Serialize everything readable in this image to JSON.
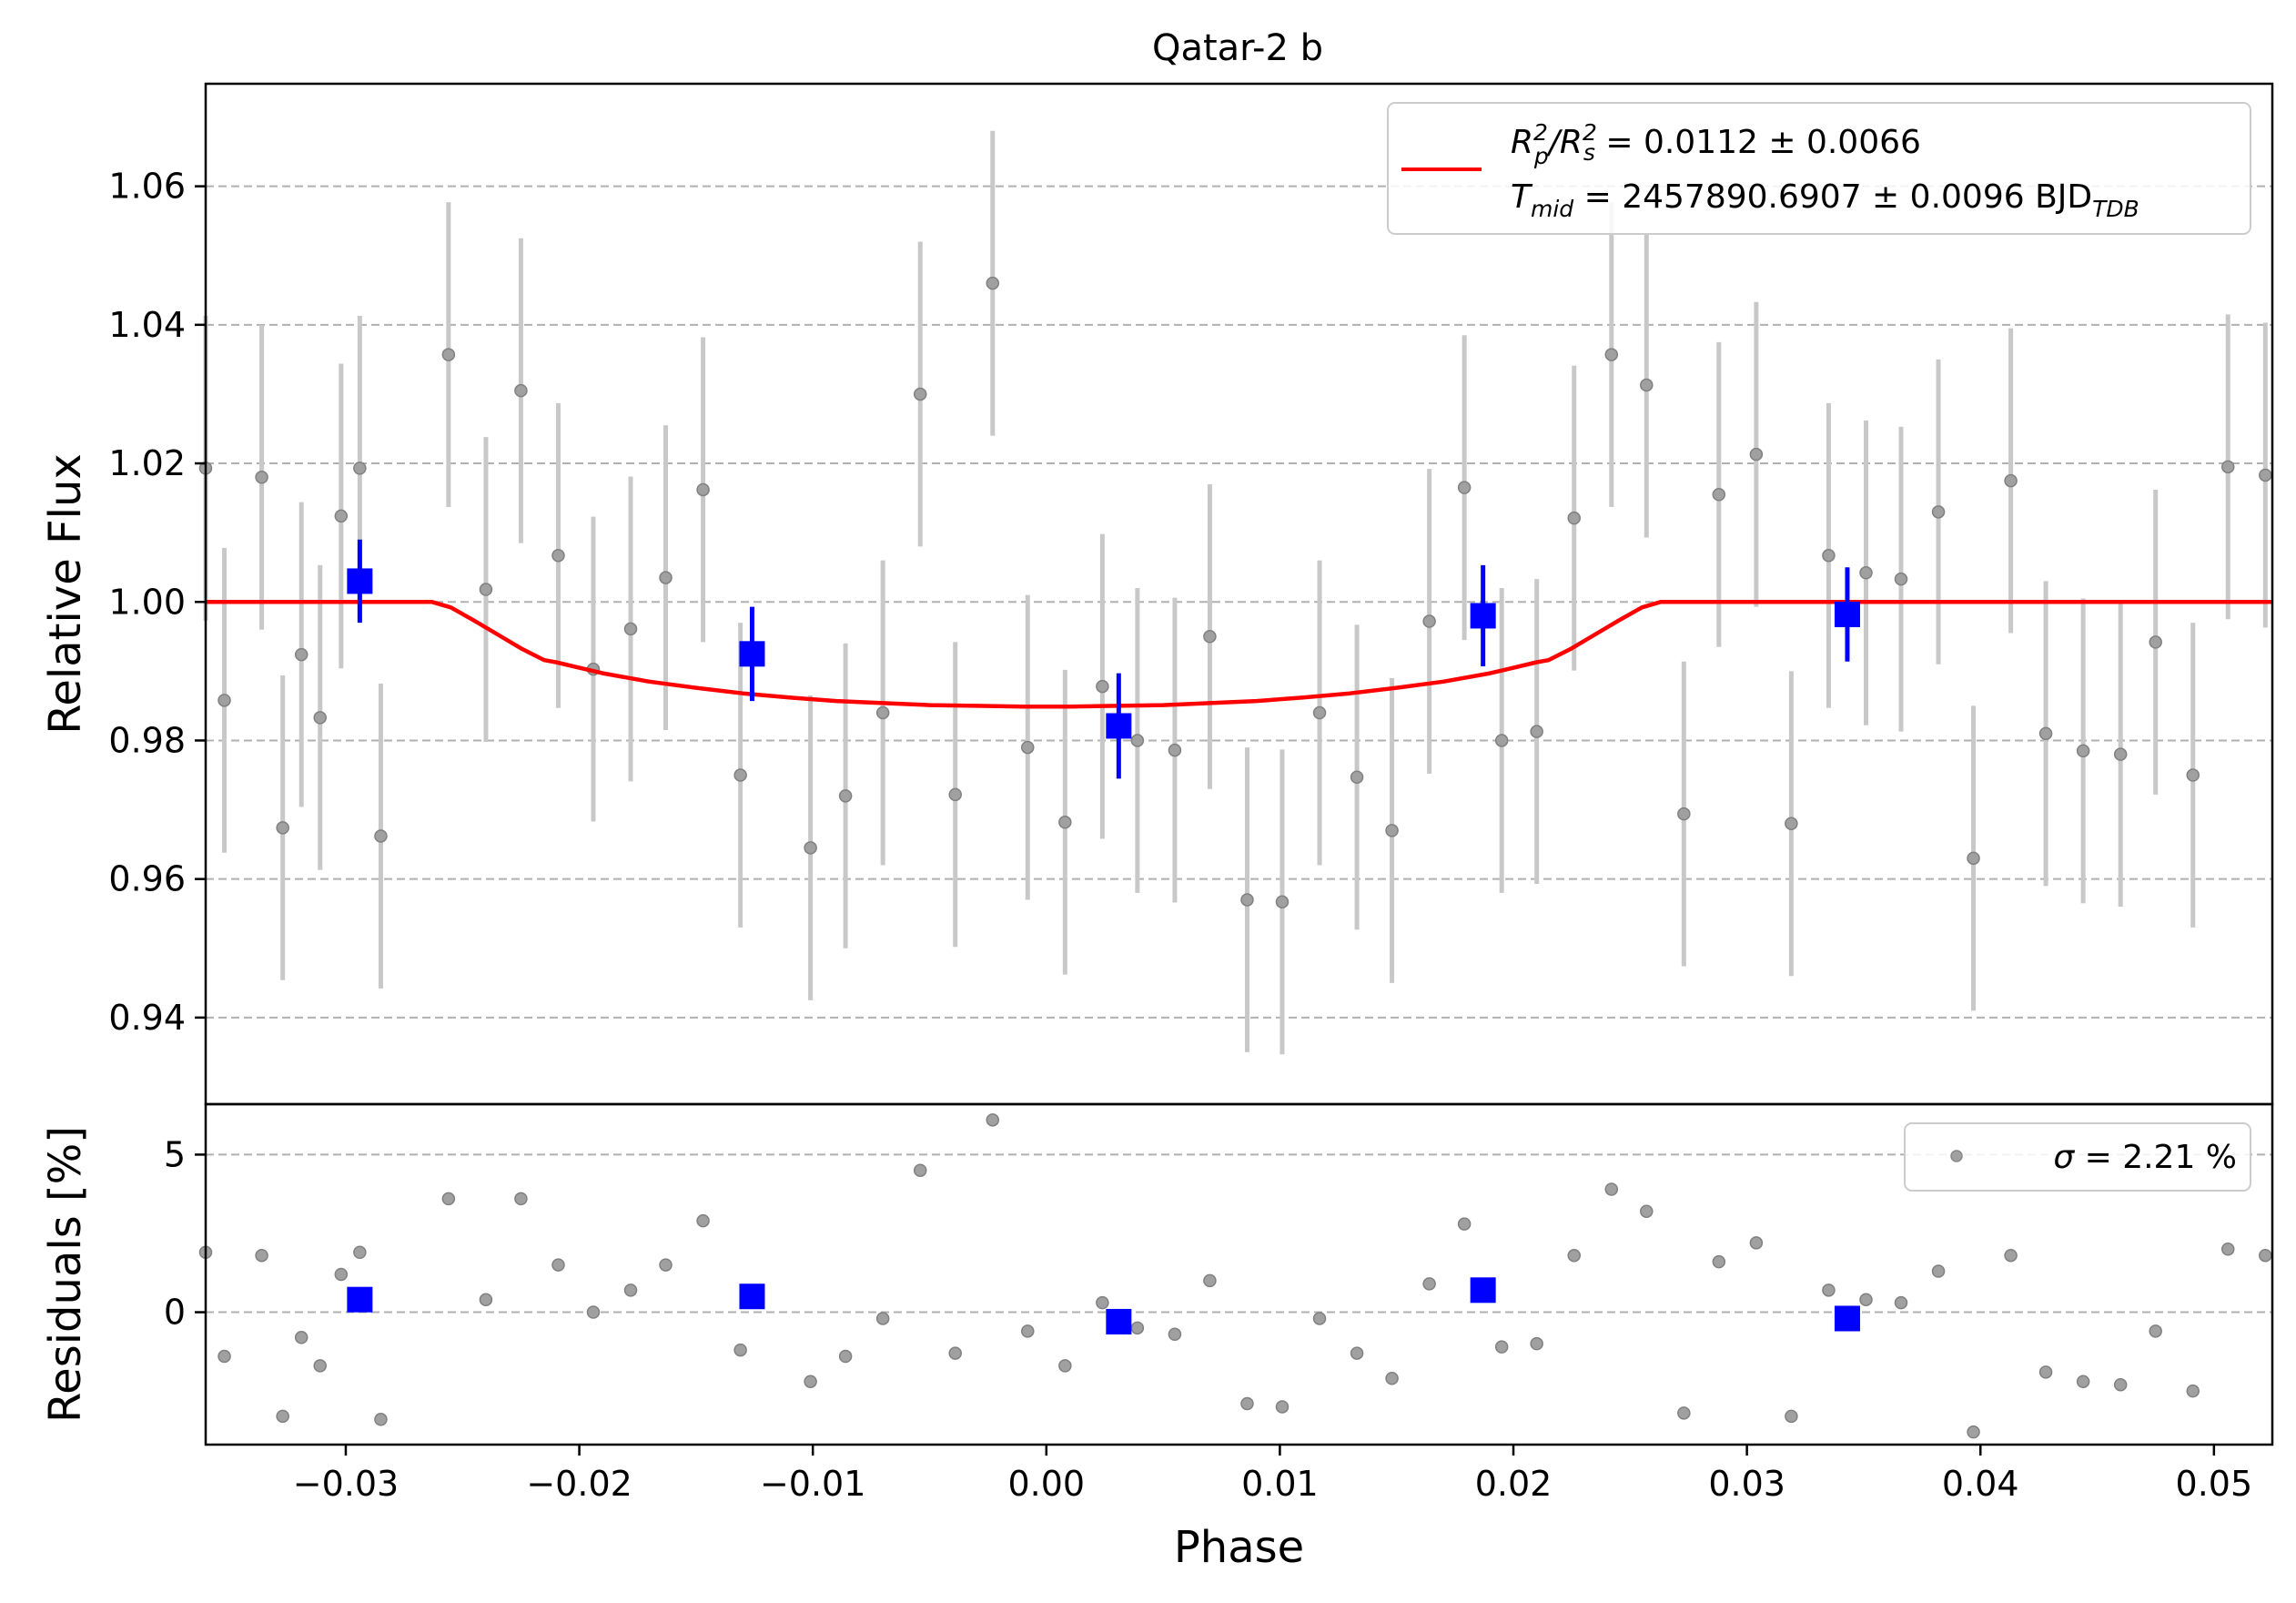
{
  "chart_data": {
    "type": "scatter",
    "title": "Qatar-2 b",
    "xlabel": "Phase",
    "xlim": [
      -0.036,
      0.0525
    ],
    "xticks": [
      -0.03,
      -0.02,
      -0.01,
      0.0,
      0.01,
      0.02,
      0.03,
      0.04,
      0.05
    ],
    "xtick_labels": [
      "−0.03",
      "−0.02",
      "−0.01",
      "0.00",
      "0.01",
      "0.02",
      "0.03",
      "0.04",
      "0.05"
    ],
    "grid": "horizontal dashed",
    "top_panel": {
      "ylabel": "Relative Flux",
      "ylim": [
        0.9275,
        1.0748
      ],
      "yticks": [
        0.94,
        0.96,
        0.98,
        1.0,
        1.02,
        1.04,
        1.06
      ],
      "ytick_labels": [
        "0.94",
        "0.96",
        "0.98",
        "1.00",
        "1.02",
        "1.04",
        "1.06"
      ],
      "legend": {
        "placement": "top-right",
        "line1": {
          "main": "R",
          "sub1": "p",
          "sup1": "2",
          "mid": "/R",
          "sub2": "s",
          "sup2": "2",
          "rest": " = 0.0112 ± 0.0066"
        },
        "line2": {
          "main": "T",
          "sub": "mid",
          "rest": " = 2457890.6907 ± 0.0096 BJD",
          "sub2": "TDB"
        }
      },
      "data_color": "#808080",
      "errorbar_color": "#c8c8c8",
      "binned_color": "#0000ff",
      "model_color": "#ff0000",
      "observations": [
        {
          "x": -0.036,
          "y": 1.0193,
          "err": 0.022
        },
        {
          "x": -0.0352,
          "y": 0.9858,
          "err": 0.022
        },
        {
          "x": -0.0336,
          "y": 1.018,
          "err": 0.022
        },
        {
          "x": -0.0327,
          "y": 0.9674,
          "err": 0.022
        },
        {
          "x": -0.0319,
          "y": 0.9924,
          "err": 0.022
        },
        {
          "x": -0.0311,
          "y": 0.9833,
          "err": 0.022
        },
        {
          "x": -0.0302,
          "y": 1.0124,
          "err": 0.022
        },
        {
          "x": -0.0294,
          "y": 1.0193,
          "err": 0.022
        },
        {
          "x": -0.0285,
          "y": 0.9662,
          "err": 0.022
        },
        {
          "x": -0.0256,
          "y": 1.0357,
          "err": 0.022
        },
        {
          "x": -0.024,
          "y": 1.0018,
          "err": 0.022
        },
        {
          "x": -0.0225,
          "y": 1.0305,
          "err": 0.022
        },
        {
          "x": -0.0209,
          "y": 1.0067,
          "err": 0.022
        },
        {
          "x": -0.0194,
          "y": 0.9903,
          "err": 0.022
        },
        {
          "x": -0.0178,
          "y": 0.9961,
          "err": 0.022
        },
        {
          "x": -0.0163,
          "y": 1.0035,
          "err": 0.022
        },
        {
          "x": -0.0147,
          "y": 1.0162,
          "err": 0.022
        },
        {
          "x": -0.0131,
          "y": 0.975,
          "err": 0.022
        },
        {
          "x": -0.0101,
          "y": 0.9645,
          "err": 0.022
        },
        {
          "x": -0.0086,
          "y": 0.972,
          "err": 0.022
        },
        {
          "x": -0.007,
          "y": 0.984,
          "err": 0.022
        },
        {
          "x": -0.0054,
          "y": 1.03,
          "err": 0.022
        },
        {
          "x": -0.0039,
          "y": 0.9722,
          "err": 0.022
        },
        {
          "x": -0.0023,
          "y": 1.046,
          "err": 0.022
        },
        {
          "x": -0.0008,
          "y": 0.979,
          "err": 0.022
        },
        {
          "x": 0.0008,
          "y": 0.9682,
          "err": 0.022
        },
        {
          "x": 0.0024,
          "y": 0.9878,
          "err": 0.022
        },
        {
          "x": 0.0039,
          "y": 0.98,
          "err": 0.022
        },
        {
          "x": 0.0055,
          "y": 0.9786,
          "err": 0.022
        },
        {
          "x": 0.007,
          "y": 0.995,
          "err": 0.022
        },
        {
          "x": 0.0086,
          "y": 0.957,
          "err": 0.022
        },
        {
          "x": 0.0101,
          "y": 0.9567,
          "err": 0.022
        },
        {
          "x": 0.0117,
          "y": 0.984,
          "err": 0.022
        },
        {
          "x": 0.0133,
          "y": 0.9747,
          "err": 0.022
        },
        {
          "x": 0.0148,
          "y": 0.967,
          "err": 0.022
        },
        {
          "x": 0.0164,
          "y": 0.9972,
          "err": 0.022
        },
        {
          "x": 0.0179,
          "y": 1.0165,
          "err": 0.022
        },
        {
          "x": 0.0195,
          "y": 0.98,
          "err": 0.022
        },
        {
          "x": 0.021,
          "y": 0.9813,
          "err": 0.022
        },
        {
          "x": 0.0226,
          "y": 1.0121,
          "err": 0.022
        },
        {
          "x": 0.0242,
          "y": 1.0357,
          "err": 0.022
        },
        {
          "x": 0.0257,
          "y": 1.0313,
          "err": 0.022
        },
        {
          "x": 0.0273,
          "y": 0.9694,
          "err": 0.022
        },
        {
          "x": 0.0288,
          "y": 1.0155,
          "err": 0.022
        },
        {
          "x": 0.0304,
          "y": 1.0213,
          "err": 0.022
        },
        {
          "x": 0.0319,
          "y": 0.968,
          "err": 0.022
        },
        {
          "x": 0.0335,
          "y": 1.0067,
          "err": 0.022
        },
        {
          "x": 0.0351,
          "y": 1.0042,
          "err": 0.022
        },
        {
          "x": 0.0366,
          "y": 1.0033,
          "err": 0.022
        },
        {
          "x": 0.0382,
          "y": 1.013,
          "err": 0.022
        },
        {
          "x": 0.0397,
          "y": 0.963,
          "err": 0.022
        },
        {
          "x": 0.0413,
          "y": 1.0175,
          "err": 0.022
        },
        {
          "x": 0.0428,
          "y": 0.981,
          "err": 0.022
        },
        {
          "x": 0.0444,
          "y": 0.9785,
          "err": 0.022
        },
        {
          "x": 0.046,
          "y": 0.978,
          "err": 0.022
        },
        {
          "x": 0.0475,
          "y": 0.9942,
          "err": 0.022
        },
        {
          "x": 0.0491,
          "y": 0.975,
          "err": 0.022
        },
        {
          "x": 0.0506,
          "y": 1.0195,
          "err": 0.022
        },
        {
          "x": 0.0522,
          "y": 1.0183,
          "err": 0.022
        }
      ],
      "binned": [
        {
          "x": -0.0294,
          "y": 1.003,
          "err": 0.006
        },
        {
          "x": -0.0126,
          "y": 0.9925,
          "err": 0.0068
        },
        {
          "x": 0.0031,
          "y": 0.9821,
          "err": 0.0076
        },
        {
          "x": 0.0187,
          "y": 0.998,
          "err": 0.0073
        },
        {
          "x": 0.0343,
          "y": 0.9982,
          "err": 0.0068
        }
      ],
      "model": {
        "x": [
          -0.036,
          -0.0263,
          -0.0255,
          -0.0245,
          -0.0235,
          -0.0225,
          -0.0215,
          -0.021,
          -0.019,
          -0.017,
          -0.015,
          -0.013,
          -0.011,
          -0.009,
          -0.007,
          -0.005,
          -0.003,
          -0.001,
          0.0,
          0.001,
          0.003,
          0.005,
          0.007,
          0.009,
          0.011,
          0.013,
          0.015,
          0.017,
          0.019,
          0.021,
          0.0215,
          0.0225,
          0.0235,
          0.0245,
          0.0255,
          0.0263,
          0.0525
        ],
        "y": [
          1.0,
          1.0,
          0.9992,
          0.9973,
          0.9953,
          0.9933,
          0.9916,
          0.9913,
          0.9897,
          0.9885,
          0.9876,
          0.9868,
          0.9862,
          0.9857,
          0.9854,
          0.9851,
          0.985,
          0.9849,
          0.9849,
          0.9849,
          0.985,
          0.9851,
          0.9854,
          0.9857,
          0.9862,
          0.9868,
          0.9876,
          0.9885,
          0.9897,
          0.9913,
          0.9916,
          0.9933,
          0.9953,
          0.9973,
          0.9992,
          1.0,
          1.0
        ]
      }
    },
    "bottom_panel": {
      "ylabel": "Residuals [%]",
      "ylim": [
        -4.2,
        6.6
      ],
      "yticks": [
        0,
        5
      ],
      "ytick_labels": [
        "0",
        "5"
      ],
      "legend": {
        "placement": "top-right",
        "sigma_symbol": "σ",
        "text": " = 2.21 %"
      },
      "observations": [
        {
          "x": -0.036,
          "y": 1.9
        },
        {
          "x": -0.0352,
          "y": -1.4
        },
        {
          "x": -0.0336,
          "y": 1.8
        },
        {
          "x": -0.0327,
          "y": -3.3
        },
        {
          "x": -0.0319,
          "y": -0.8
        },
        {
          "x": -0.0311,
          "y": -1.7
        },
        {
          "x": -0.0302,
          "y": 1.2
        },
        {
          "x": -0.0294,
          "y": 1.9
        },
        {
          "x": -0.0285,
          "y": -3.4
        },
        {
          "x": -0.0256,
          "y": 3.6
        },
        {
          "x": -0.024,
          "y": 0.4
        },
        {
          "x": -0.0225,
          "y": 3.6
        },
        {
          "x": -0.0209,
          "y": 1.5
        },
        {
          "x": -0.0194,
          "y": 0.0
        },
        {
          "x": -0.0178,
          "y": 0.7
        },
        {
          "x": -0.0163,
          "y": 1.5
        },
        {
          "x": -0.0147,
          "y": 2.9
        },
        {
          "x": -0.0131,
          "y": -1.2
        },
        {
          "x": -0.0101,
          "y": -2.2
        },
        {
          "x": -0.0086,
          "y": -1.4
        },
        {
          "x": -0.007,
          "y": -0.2
        },
        {
          "x": -0.0054,
          "y": 4.5
        },
        {
          "x": -0.0039,
          "y": -1.3
        },
        {
          "x": -0.0023,
          "y": 6.1
        },
        {
          "x": -0.0008,
          "y": -0.6
        },
        {
          "x": 0.0008,
          "y": -1.7
        },
        {
          "x": 0.0024,
          "y": 0.3
        },
        {
          "x": 0.0039,
          "y": -0.5
        },
        {
          "x": 0.0055,
          "y": -0.7
        },
        {
          "x": 0.007,
          "y": 1.0
        },
        {
          "x": 0.0086,
          "y": -2.9
        },
        {
          "x": 0.0101,
          "y": -3.0
        },
        {
          "x": 0.0117,
          "y": -0.2
        },
        {
          "x": 0.0133,
          "y": -1.3
        },
        {
          "x": 0.0148,
          "y": -2.1
        },
        {
          "x": 0.0164,
          "y": 0.9
        },
        {
          "x": 0.0179,
          "y": 2.8
        },
        {
          "x": 0.0195,
          "y": -1.1
        },
        {
          "x": 0.021,
          "y": -1.0
        },
        {
          "x": 0.0226,
          "y": 1.8
        },
        {
          "x": 0.0242,
          "y": 3.9
        },
        {
          "x": 0.0257,
          "y": 3.2
        },
        {
          "x": 0.0273,
          "y": -3.2
        },
        {
          "x": 0.0288,
          "y": 1.6
        },
        {
          "x": 0.0304,
          "y": 2.2
        },
        {
          "x": 0.0319,
          "y": -3.3
        },
        {
          "x": 0.0335,
          "y": 0.7
        },
        {
          "x": 0.0351,
          "y": 0.4
        },
        {
          "x": 0.0366,
          "y": 0.3
        },
        {
          "x": 0.0382,
          "y": 1.3
        },
        {
          "x": 0.0397,
          "y": -3.8
        },
        {
          "x": 0.0413,
          "y": 1.8
        },
        {
          "x": 0.0428,
          "y": -1.9
        },
        {
          "x": 0.0444,
          "y": -2.2
        },
        {
          "x": 0.046,
          "y": -2.3
        },
        {
          "x": 0.0475,
          "y": -0.6
        },
        {
          "x": 0.0491,
          "y": -2.5
        },
        {
          "x": 0.0506,
          "y": 2.0
        },
        {
          "x": 0.0522,
          "y": 1.8
        }
      ],
      "binned": [
        {
          "x": -0.0294,
          "y": 0.4
        },
        {
          "x": -0.0126,
          "y": 0.5
        },
        {
          "x": 0.0031,
          "y": -0.3
        },
        {
          "x": 0.0187,
          "y": 0.7
        },
        {
          "x": 0.0343,
          "y": -0.2
        }
      ]
    }
  }
}
